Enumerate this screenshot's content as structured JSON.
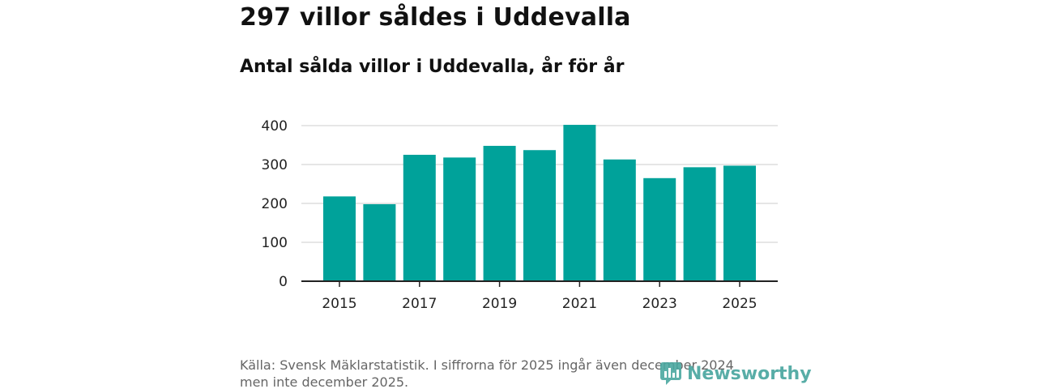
{
  "title": "297 villor såldes i Uddevalla",
  "subtitle": "Antal sålda villor i Uddevalla, år för år",
  "source_line1": "Källa: Svensk Mäklarstatistik. I siffrorna för 2025 ingår även december 2024",
  "source_line2": "men inte december 2025.",
  "brand": {
    "name": "Newsworthy",
    "icon": "newsworthy-logo-icon",
    "color": "#4aa7a0"
  },
  "colors": {
    "bar": "#00a29a",
    "grid": "#dddddd",
    "axis": "#222222"
  },
  "chart_data": {
    "type": "bar",
    "title": "Antal sålda villor i Uddevalla, år för år",
    "xlabel": "",
    "ylabel": "",
    "categories": [
      "2015",
      "2016",
      "2017",
      "2018",
      "2019",
      "2020",
      "2021",
      "2022",
      "2023",
      "2024",
      "2025"
    ],
    "values": [
      218,
      198,
      325,
      318,
      348,
      337,
      402,
      313,
      265,
      293,
      297
    ],
    "x_tick_labels": [
      "2015",
      "2017",
      "2019",
      "2021",
      "2023",
      "2025"
    ],
    "y_ticks": [
      0,
      100,
      200,
      300,
      400
    ],
    "ylim": [
      0,
      400
    ],
    "grid": true
  }
}
